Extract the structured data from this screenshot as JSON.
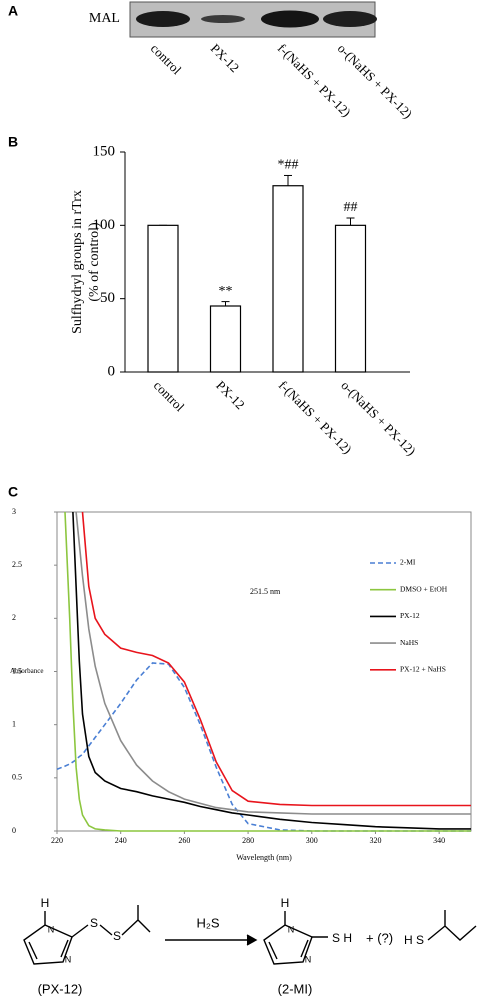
{
  "panel_a": {
    "label": "A",
    "marker": "MAL",
    "lanes": [
      "control",
      "PX-12",
      "f-(NaHS + PX-12)",
      "o-(NaHS + PX-12)"
    ]
  },
  "chart_data": [
    {
      "type": "bar",
      "panel_label": "B",
      "ylabel": [
        "Sulfhydryl groups in rTrx",
        "(% of control)"
      ],
      "categories": [
        "control",
        "PX-12",
        "f-(NaHS + PX-12)",
        "o-(NaHS + PX-12)"
      ],
      "values": [
        100,
        45,
        127,
        100
      ],
      "errors": [
        0,
        3,
        7,
        5
      ],
      "value_labels": [
        null,
        "**",
        "*##",
        "##"
      ],
      "color": "#ffffff",
      "edgecolor": "#000000",
      "ylim": [
        0,
        150
      ],
      "yticks": [
        0,
        50,
        100,
        150
      ]
    },
    {
      "type": "line",
      "panel_label": "C",
      "xlabel": "Wavelength (nm)",
      "ylabel": "Absorbance",
      "annotation": "251.5 nm",
      "x": [
        220,
        222.5,
        224,
        225,
        226,
        227,
        228,
        230,
        232,
        235,
        240,
        245,
        250,
        255,
        260,
        265,
        270,
        275,
        280,
        290,
        300,
        310,
        320,
        330,
        340,
        350
      ],
      "series": [
        {
          "name": "2-MI",
          "color": "#4a7fd4",
          "dashed": true,
          "values": [
            0.58,
            0.61,
            0.63,
            0.65,
            0.67,
            0.7,
            0.72,
            0.8,
            0.88,
            1.0,
            1.2,
            1.42,
            1.58,
            1.57,
            1.35,
            1.0,
            0.6,
            0.25,
            0.07,
            0.01,
            0,
            0,
            0,
            0,
            0,
            0
          ]
        },
        {
          "name": "DMSO + EtOH",
          "color": "#8cc63f",
          "dashed": false,
          "values": [
            null,
            3,
            2.0,
            1.2,
            0.6,
            0.3,
            0.15,
            0.05,
            0.02,
            0.01,
            0,
            0,
            0,
            0,
            0,
            0,
            0,
            0,
            0,
            0,
            0,
            0,
            0,
            0,
            0,
            0
          ]
        },
        {
          "name": "PX-12",
          "color": "#000000",
          "dashed": false,
          "values": [
            null,
            null,
            null,
            3,
            2.3,
            1.6,
            1.1,
            0.7,
            0.55,
            0.47,
            0.4,
            0.37,
            0.33,
            0.3,
            0.27,
            0.23,
            0.2,
            0.17,
            0.15,
            0.11,
            0.08,
            0.06,
            0.04,
            0.03,
            0.02,
            0.02
          ]
        },
        {
          "name": "NaHS",
          "color": "#8c8c8c",
          "dashed": false,
          "values": [
            null,
            null,
            null,
            null,
            3,
            2.7,
            2.4,
            1.9,
            1.55,
            1.2,
            0.85,
            0.62,
            0.47,
            0.37,
            0.3,
            0.26,
            0.22,
            0.2,
            0.18,
            0.17,
            0.16,
            0.16,
            0.16,
            0.16,
            0.16,
            0.16
          ]
        },
        {
          "name": "PX-12 + NaHS",
          "color": "#e8141c",
          "dashed": false,
          "values": [
            null,
            null,
            null,
            null,
            null,
            null,
            3,
            2.3,
            2.0,
            1.85,
            1.72,
            1.68,
            1.65,
            1.58,
            1.4,
            1.05,
            0.65,
            0.38,
            0.28,
            0.25,
            0.24,
            0.24,
            0.24,
            0.24,
            0.24,
            0.24
          ]
        }
      ],
      "xlim": [
        220,
        350
      ],
      "xticks": [
        220,
        240,
        260,
        280,
        300,
        320,
        340
      ],
      "ylim": [
        0,
        3
      ],
      "yticks": [
        0,
        0.5,
        1,
        1.5,
        2,
        2.5,
        3
      ],
      "legend": "right"
    }
  ],
  "scheme": {
    "reagent": "H₂S",
    "px12_atoms": [
      "H",
      "N",
      "N",
      "S",
      "S"
    ],
    "product_atoms": [
      "H",
      "N",
      "N",
      "S H"
    ],
    "plus": "+ (?)",
    "thiol_atom": "H S",
    "px12_label": "(PX-12)",
    "product_label": "(2-MI)"
  }
}
